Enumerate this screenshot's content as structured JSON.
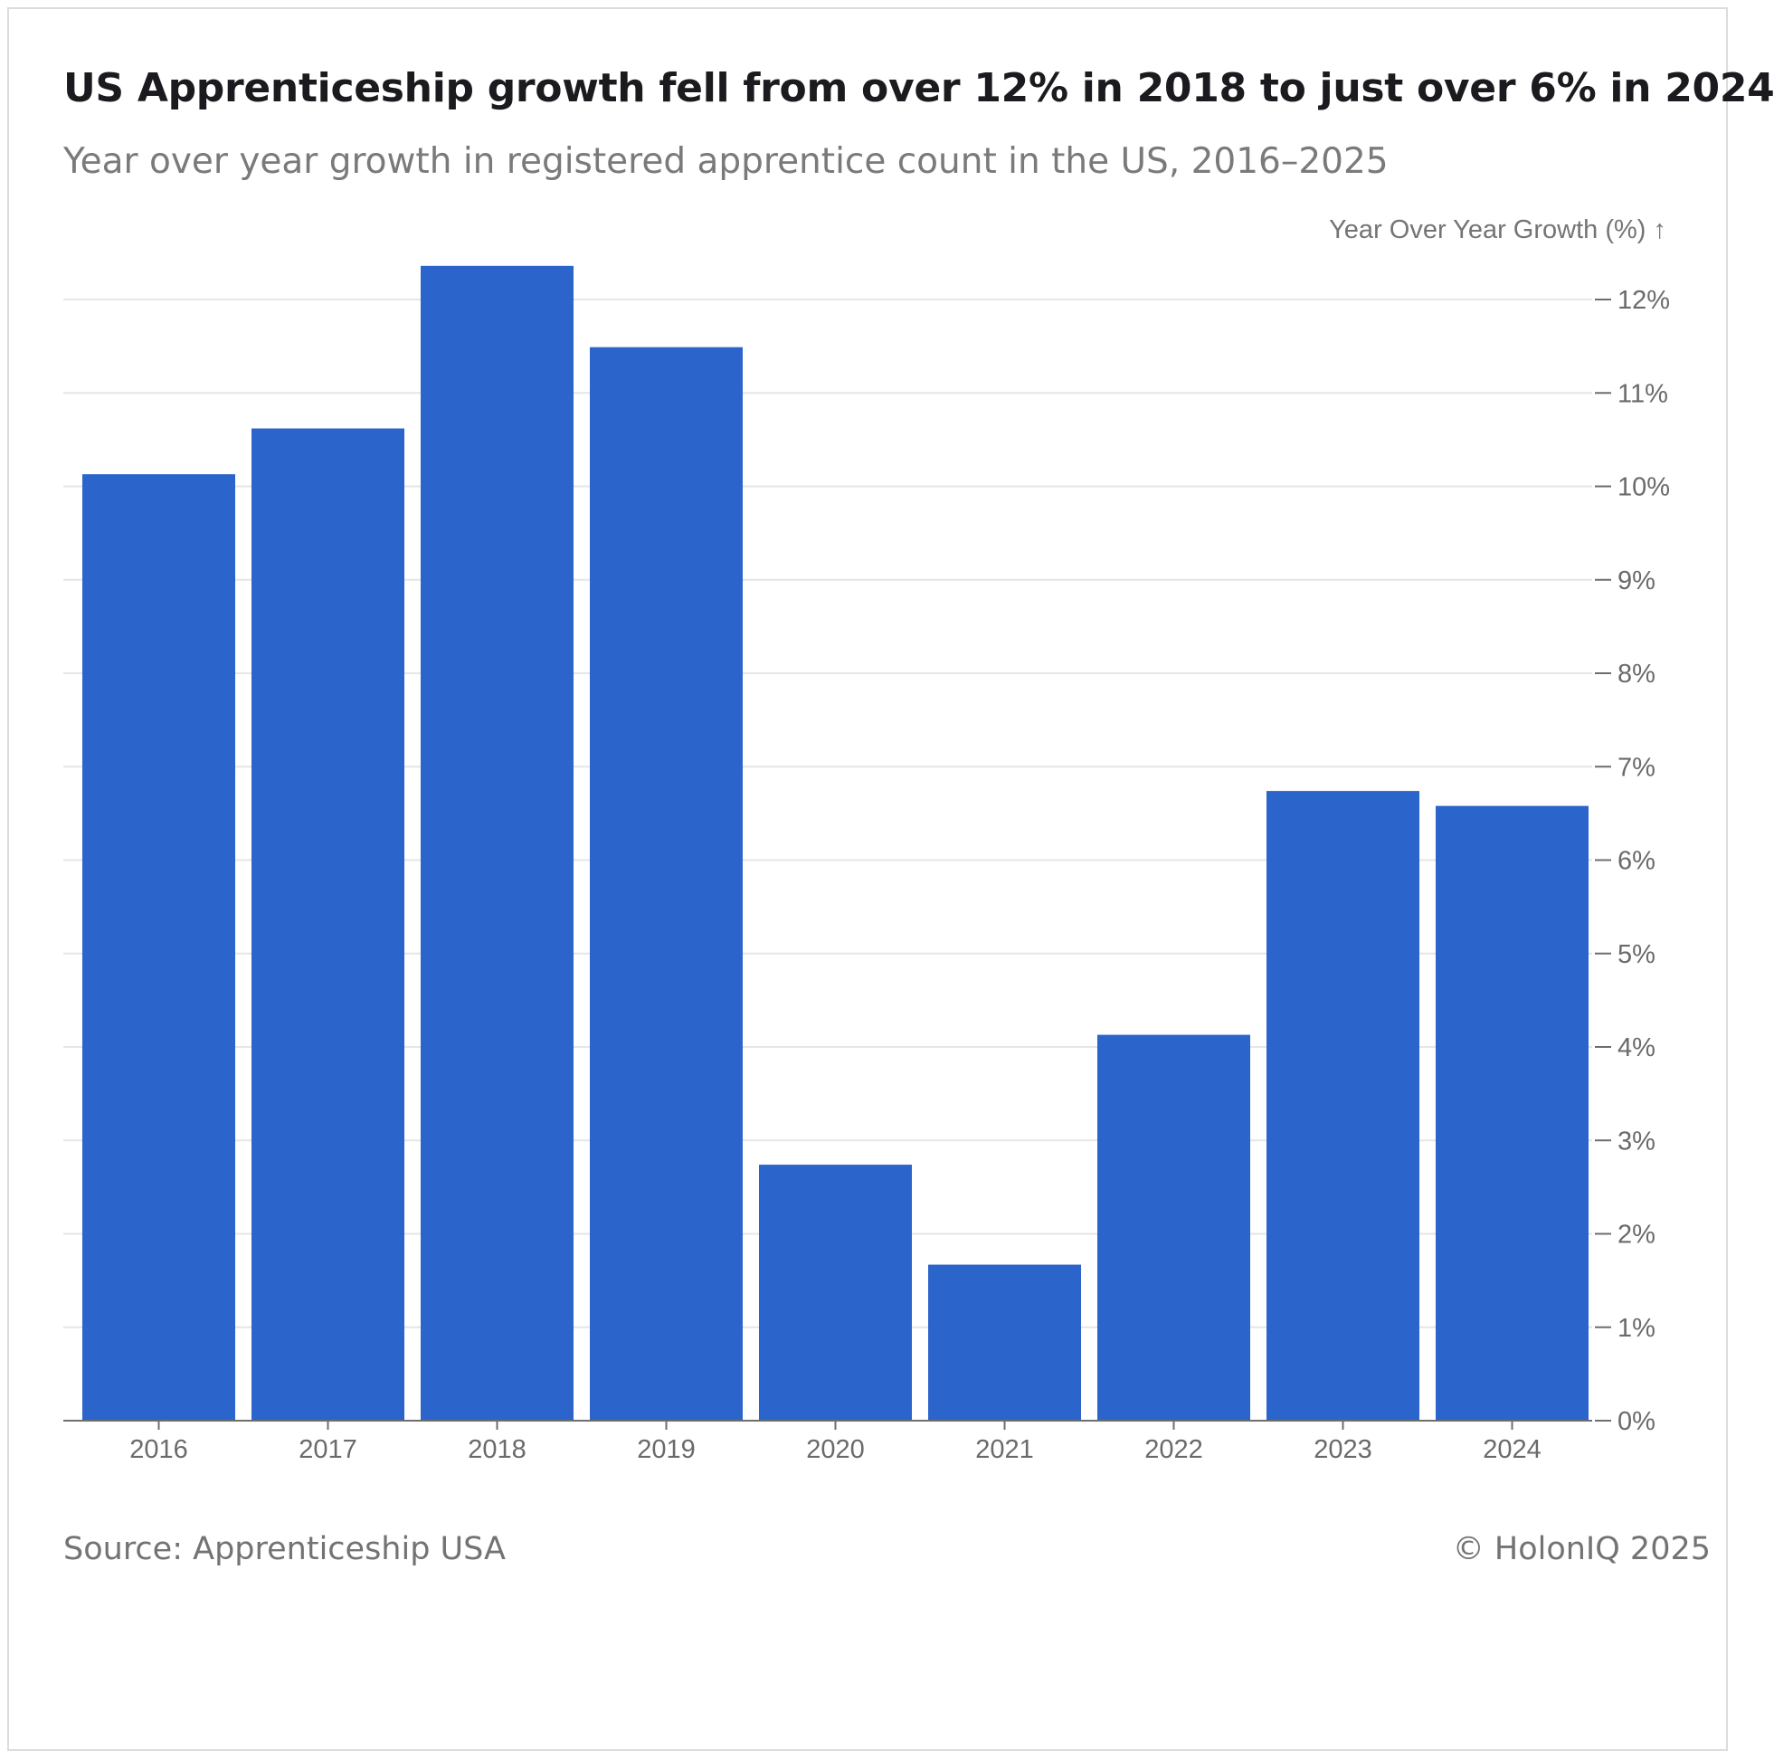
{
  "chart_data": {
    "type": "bar",
    "title": "US Apprenticeship growth fell from over 12% in 2018 to just over 6% in 2024",
    "subtitle": "Year over year growth in registered apprentice count in the US, 2016–2025",
    "ylabel": "Year Over Year Growth (%) ↑",
    "categories": [
      "2016",
      "2017",
      "2018",
      "2019",
      "2020",
      "2021",
      "2022",
      "2023",
      "2024"
    ],
    "values": [
      10.13,
      10.62,
      12.36,
      11.49,
      2.74,
      1.67,
      4.13,
      6.74,
      6.58
    ],
    "ylim": [
      0,
      12
    ],
    "yticks": [
      0,
      1,
      2,
      3,
      4,
      5,
      6,
      7,
      8,
      9,
      10,
      11,
      12
    ],
    "ytick_suffix": "%",
    "y_axis_side": "right",
    "grid": true,
    "bar_color": "#2b65cc",
    "source": "Source: Apprenticeship USA",
    "credit": "© HolonIQ 2025"
  }
}
